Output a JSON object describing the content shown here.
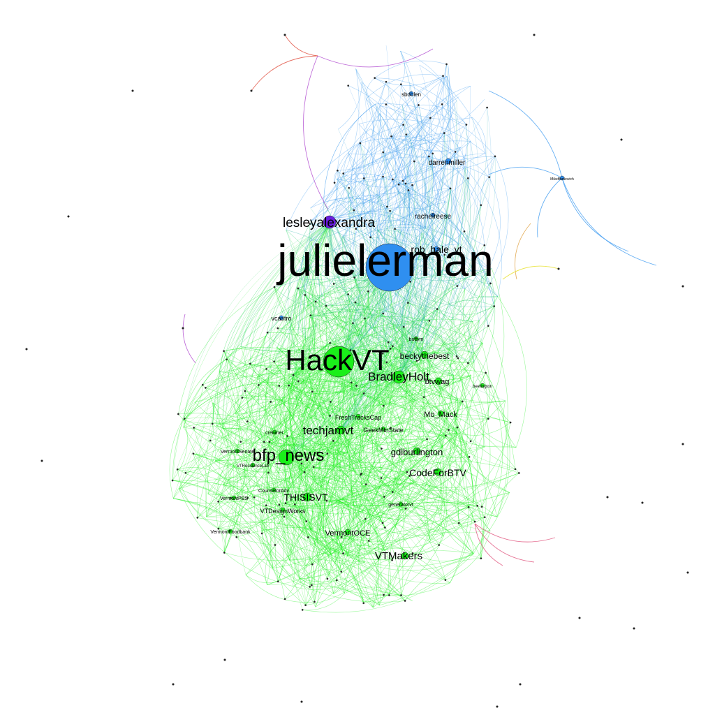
{
  "colors": {
    "background": "#ffffff",
    "community_blue": "#3e9bf0",
    "community_green": "#1aef1a",
    "hub_blue": "#2f8ff0",
    "hub_purple": "#6a1fe0",
    "edge_red": "#e04a3a",
    "edge_purple": "#b04ad0",
    "edge_pink": "#e0507a",
    "edge_yellow": "#e6e020",
    "edge_orange": "#e0a040"
  },
  "nodes": [
    {
      "id": "julielerman",
      "label": "julielerman",
      "group": "blue",
      "size": "xl"
    },
    {
      "id": "HackVT",
      "label": "HackVT",
      "group": "green",
      "size": "l"
    },
    {
      "id": "bfp_news",
      "label": "bfp_news",
      "group": "green",
      "size": "m"
    },
    {
      "id": "lesleyalexandra",
      "label": "lesleyalexandra",
      "group": "purple",
      "size": "m"
    },
    {
      "id": "BradleyHolt",
      "label": "BradleyHolt",
      "group": "green",
      "size": "m"
    },
    {
      "id": "techjamvt",
      "label": "techjamvt",
      "group": "green",
      "size": "m"
    },
    {
      "id": "VTMakers",
      "label": "VTMakers",
      "group": "green",
      "size": "s"
    },
    {
      "id": "CodeForBTV",
      "label": "CodeForBTV",
      "group": "green",
      "size": "s"
    },
    {
      "id": "THISISVT",
      "label": "THISISVT",
      "group": "green",
      "size": "s"
    },
    {
      "id": "rob_hale_vt",
      "label": "rob_hale_vt",
      "group": "blue",
      "size": "s"
    },
    {
      "id": "gdiburlington",
      "label": "gdiburlington",
      "group": "green",
      "size": "s"
    },
    {
      "id": "beckythebest",
      "label": "beckythebest",
      "group": "green",
      "size": "s"
    },
    {
      "id": "Mo_Mack",
      "label": "Mo_Mack",
      "group": "green",
      "size": "xs"
    },
    {
      "id": "btvwag",
      "label": "btvwag",
      "group": "green",
      "size": "xs"
    },
    {
      "id": "VermontOCE",
      "label": "VermontOCE",
      "group": "green",
      "size": "xs"
    },
    {
      "id": "darrenmiller",
      "label": "darrenmiller",
      "group": "blue",
      "size": "xs"
    },
    {
      "id": "rachelreese",
      "label": "rachelreese",
      "group": "blue",
      "size": "xs"
    },
    {
      "id": "FreshTracksCap",
      "label": "FreshTracksCap",
      "group": "green",
      "size": "xs"
    },
    {
      "id": "GeekMtnState",
      "label": "GeekMtnState",
      "group": "green",
      "size": "xs"
    },
    {
      "id": "VTDesignWorks",
      "label": "VTDesignWorks",
      "group": "green",
      "size": "xs"
    },
    {
      "id": "vcastro",
      "label": "vcastro",
      "group": "blue",
      "size": "xs"
    },
    {
      "id": "sbohlen",
      "label": "sbohlen",
      "group": "blue",
      "size": "xs"
    },
    {
      "id": "VermontSenate",
      "label": "VermontSenate",
      "group": "green",
      "size": "xxs"
    },
    {
      "id": "VermontPBS",
      "label": "VermontPBS",
      "group": "green",
      "size": "xxs"
    },
    {
      "id": "VermontFoodbank",
      "label": "VermontFoodbank",
      "group": "green",
      "size": "xxs"
    },
    {
      "id": "CounselorAdv",
      "label": "CounselorAdv",
      "group": "green",
      "size": "xxs"
    },
    {
      "id": "VTResidenceLab",
      "label": "VTResidenceLab",
      "group": "green",
      "size": "xxs"
    },
    {
      "id": "generatorvt",
      "label": "generatorvt",
      "group": "green",
      "size": "xxs"
    },
    {
      "id": "buffym",
      "label": "buffym",
      "group": "green",
      "size": "xxs"
    },
    {
      "id": "creamer",
      "label": "creamer",
      "group": "green",
      "size": "xxs"
    },
    {
      "id": "beetington",
      "label": "beetington",
      "group": "green",
      "size": "xxs"
    },
    {
      "id": "MikeBenkovich",
      "label": "MikeBenkovich",
      "group": "blue",
      "size": "xxs"
    }
  ]
}
